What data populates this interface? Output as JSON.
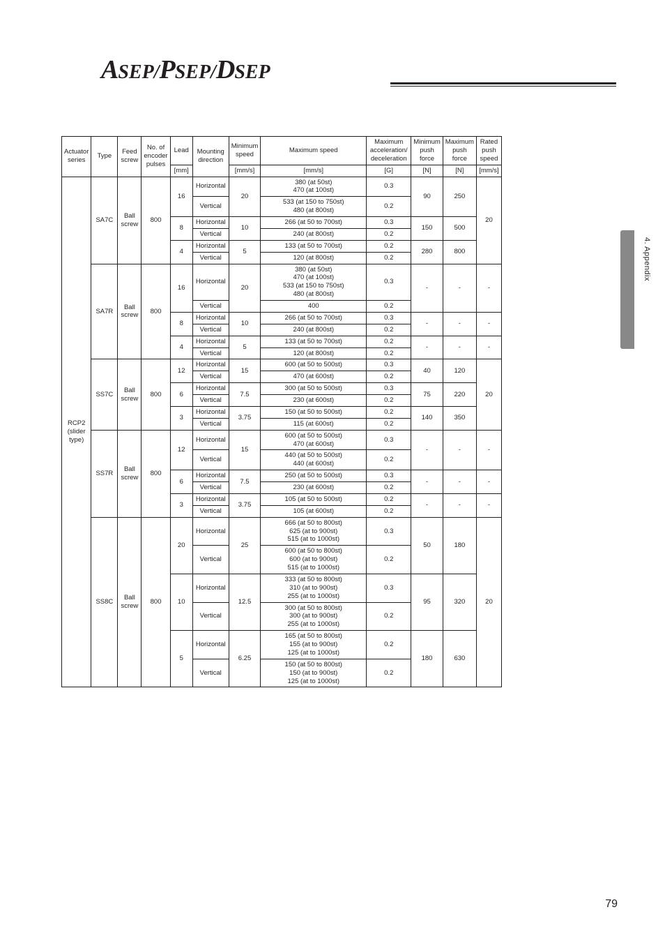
{
  "logo": {
    "a": "A",
    "sep1": "SEP/",
    "p": "P",
    "sep2": "SEP/",
    "d": "D",
    "sep3": "SEP"
  },
  "sideLabel": "4. Appendix",
  "pageNumber": "79",
  "headers": {
    "actuator": "Actuator series",
    "type": "Type",
    "feed": "Feed screw",
    "encoder": "No. of encoder pulses",
    "lead": "Lead",
    "lead_unit": "[mm]",
    "mounting": "Mounting direction",
    "minspeed": "Minimum speed",
    "minspeed_unit": "[mm/s]",
    "maxspeed": "Maximum speed",
    "maxspeed_unit": "[mm/s]",
    "accel": "Maximum acceleration/ deceleration",
    "accel_unit": "[G]",
    "minforce": "Minimum push force",
    "minforce_unit": "[N]",
    "maxforce": "Maximum push force",
    "maxforce_unit": "[N]",
    "ratedspeed": "Rated push speed",
    "ratedspeed_unit": "[mm/s]"
  },
  "actuatorSeries": "RCP2 (slider type)",
  "r": {
    "sa7c": {
      "type": "SA7C",
      "feed": "Ball screw",
      "enc": "800",
      "l16h_spd": "380 (at 50st)\n470 (at 100st)",
      "l16h_acc": "0.3",
      "l16v_spd": "533 (at 150 to 750st)\n480 (at 800st)",
      "l16v_acc": "0.2",
      "l16_min": "20",
      "l16_fmin": "90",
      "l16_fmax": "250",
      "l8h_spd": "266 (at 50 to 700st)",
      "l8h_acc": "0.3",
      "l8v_spd": "240 (at 800st)",
      "l8v_acc": "0.2",
      "l8_min": "10",
      "l8_fmin": "150",
      "l8_fmax": "500",
      "l4h_spd": "133 (at 50 to 700st)",
      "l4h_acc": "0.2",
      "l4v_spd": "120 (at 800st)",
      "l4v_acc": "0.2",
      "l4_min": "5",
      "l4_fmin": "280",
      "l4_fmax": "800",
      "rspd": "20"
    },
    "sa7r": {
      "type": "SA7R",
      "feed": "Ball screw",
      "enc": "800",
      "l16h_spd": "380 (at 50st)\n470 (at 100st)\n533 (at 150 to 750st)\n480 (at 800st)",
      "l16h_acc": "0.3",
      "l16v_spd": "400",
      "l16v_acc": "0.2",
      "l16_min": "20",
      "l8h_spd": "266 (at 50 to 700st)",
      "l8h_acc": "0.3",
      "l8v_spd": "240 (at 800st)",
      "l8v_acc": "0.2",
      "l8_min": "10",
      "l4h_spd": "133 (at 50 to 700st)",
      "l4h_acc": "0.2",
      "l4v_spd": "120 (at 800st)",
      "l4v_acc": "0.2",
      "l4_min": "5"
    },
    "ss7c": {
      "type": "SS7C",
      "feed": "Ball screw",
      "enc": "800",
      "l12h_spd": "600 (at 50 to 500st)",
      "l12h_acc": "0.3",
      "l12v_spd": "470 (at 600st)",
      "l12v_acc": "0.2",
      "l12_min": "15",
      "l12_fmin": "40",
      "l12_fmax": "120",
      "l6h_spd": "300 (at 50 to 500st)",
      "l6h_acc": "0.3",
      "l6v_spd": "230 (at 600st)",
      "l6v_acc": "0.2",
      "l6_min": "7.5",
      "l6_fmin": "75",
      "l6_fmax": "220",
      "l3h_spd": "150 (at 50 to 500st)",
      "l3h_acc": "0.2",
      "l3v_spd": "115 (at 600st)",
      "l3v_acc": "0.2",
      "l3_min": "3.75",
      "l3_fmin": "140",
      "l3_fmax": "350",
      "rspd": "20"
    },
    "ss7r": {
      "type": "SS7R",
      "feed": "Ball screw",
      "enc": "800",
      "l12h_spd": "600 (at 50 to 500st)\n470 (at 600st)",
      "l12h_acc": "0.3",
      "l12v_spd": "440 (at 50 to 500st)\n440 (at 600st)",
      "l12v_acc": "0.2",
      "l12_min": "15",
      "l6h_spd": "250 (at 50 to 500st)",
      "l6h_acc": "0.3",
      "l6v_spd": "230 (at 600st)",
      "l6v_acc": "0.2",
      "l6_min": "7.5",
      "l3h_spd": "105 (at 50 to 500st)",
      "l3h_acc": "0.2",
      "l3v_spd": "105 (at 600st)",
      "l3v_acc": "0.2",
      "l3_min": "3.75"
    },
    "ss8c": {
      "type": "SS8C",
      "feed": "Ball screw",
      "enc": "800",
      "l20h_spd": "666 (at 50 to 800st)\n625 (at to 900st)\n515 (at to 1000st)",
      "l20h_acc": "0.3",
      "l20v_spd": "600 (at 50 to 800st)\n600 (at to 900st)\n515 (at to 1000st)",
      "l20v_acc": "0.2",
      "l20_min": "25",
      "l20_fmin": "50",
      "l20_fmax": "180",
      "l10h_spd": "333 (at 50 to 800st)\n310 (at to 900st)\n255 (at to 1000st)",
      "l10h_acc": "0.3",
      "l10v_spd": "300 (at 50 to 800st)\n300 (at to 900st)\n255 (at to 1000st)",
      "l10v_acc": "0.2",
      "l10_min": "12.5",
      "l10_fmin": "95",
      "l10_fmax": "320",
      "l5h_spd": "165 (at 50 to 800st)\n155 (at to 900st)\n125 (at to 1000st)",
      "l5h_acc": "0.2",
      "l5v_spd": "150 (at 50 to 800st)\n150 (at to 900st)\n125 (at to 1000st)",
      "l5v_acc": "0.2",
      "l5_min": "6.25",
      "l5_fmin": "180",
      "l5_fmax": "630",
      "rspd": "20"
    }
  },
  "labels": {
    "h": "Horizontal",
    "v": "Vertical",
    "dash": "-",
    "l16": "16",
    "l8": "8",
    "l4": "4",
    "l12": "12",
    "l6": "6",
    "l3": "3",
    "l20": "20",
    "l10": "10",
    "l5": "5"
  }
}
